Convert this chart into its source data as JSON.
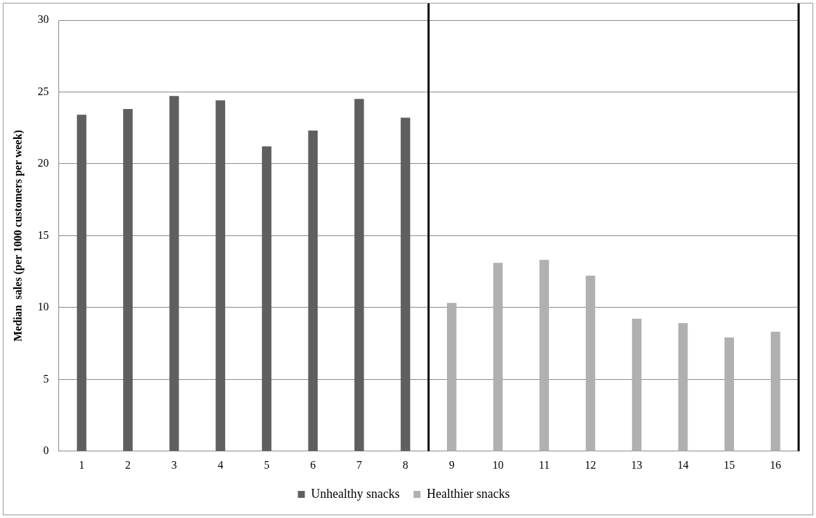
{
  "chart_data": {
    "type": "bar",
    "ylabel": "Median  sales (per 1000 customers per week)",
    "xlim": [
      0.5,
      16.5
    ],
    "xticks": [
      1,
      2,
      3,
      4,
      5,
      6,
      7,
      8,
      9,
      10,
      11,
      12,
      13,
      14,
      15,
      16
    ],
    "ylim": [
      0,
      30
    ],
    "yticks": [
      0,
      5,
      10,
      15,
      20,
      25,
      30
    ],
    "grid": "y",
    "legend": "bottom",
    "series": [
      {
        "name": "Unhealthy snacks",
        "color": "#5f5f5f",
        "x": [
          1,
          2,
          3,
          4,
          5,
          6,
          7,
          8
        ],
        "values": [
          23.4,
          23.8,
          24.7,
          24.4,
          21.2,
          22.3,
          24.5,
          23.2
        ]
      },
      {
        "name": "Healthier snacks",
        "color": "#b0b0b0",
        "x": [
          9,
          10,
          11,
          12,
          13,
          14,
          15,
          16
        ],
        "values": [
          10.3,
          13.1,
          13.3,
          12.2,
          9.2,
          8.9,
          7.9,
          8.3
        ]
      }
    ],
    "ref_lines": [
      {
        "axis": "x",
        "value": 8.5,
        "color": "#000000"
      },
      {
        "axis": "x",
        "value": 16.5,
        "color": "#000000"
      }
    ]
  }
}
